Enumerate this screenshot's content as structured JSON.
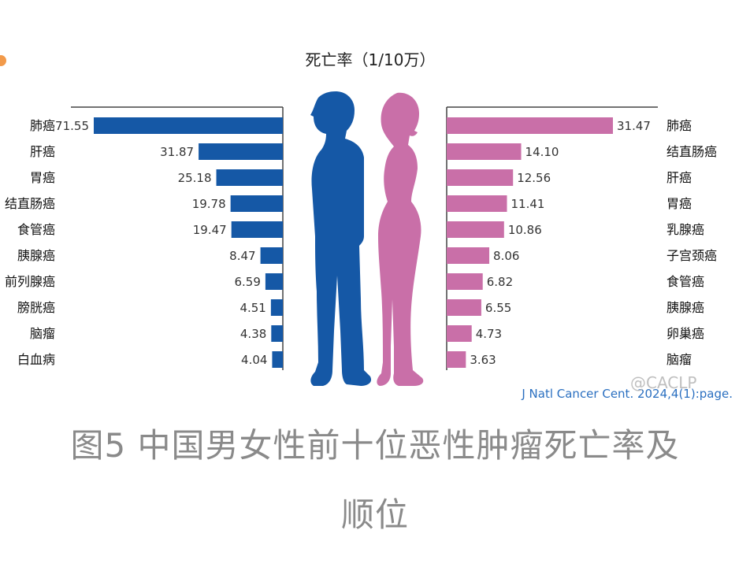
{
  "chart_data": {
    "type": "bar",
    "title": "死亡率（1/10万）",
    "male": {
      "categories": [
        "肺癌",
        "肝癌",
        "胃癌",
        "结直肠癌",
        "食管癌",
        "胰腺癌",
        "前列腺癌",
        "膀胱癌",
        "脑瘤",
        "白血病"
      ],
      "values": [
        71.55,
        31.87,
        25.18,
        19.78,
        19.47,
        8.47,
        6.59,
        4.51,
        4.38,
        4.04
      ],
      "labels": [
        "71.55",
        "31.87",
        "25.18",
        "19.78",
        "19.47",
        "8.47",
        "6.59",
        "4.51",
        "4.38",
        "4.04"
      ],
      "color": "#1558a6"
    },
    "female": {
      "categories": [
        "肺癌",
        "结直肠癌",
        "肝癌",
        "胃癌",
        "乳腺癌",
        "子宫颈癌",
        "食管癌",
        "胰腺癌",
        "卵巢癌",
        "脑瘤"
      ],
      "values": [
        31.47,
        14.1,
        12.56,
        11.41,
        10.86,
        8.06,
        6.82,
        6.55,
        4.73,
        3.63
      ],
      "labels": [
        "31.47",
        "14.10",
        "12.56",
        "11.41",
        "10.86",
        "8.06",
        "6.82",
        "6.55",
        "4.73",
        "3.63"
      ],
      "color": "#c96fa8"
    },
    "source": "J Natl Cancer Cent. 2024,4(1):page."
  },
  "watermark": "@CACLP",
  "caption": {
    "line1": "图5 中国男女性前十位恶性肿瘤死亡率及",
    "line2": "顺位"
  },
  "colors": {
    "male": "#1558a6",
    "female": "#c96fa8",
    "caption": "#8a8a8a",
    "accent_dot": "#f29a4a"
  }
}
